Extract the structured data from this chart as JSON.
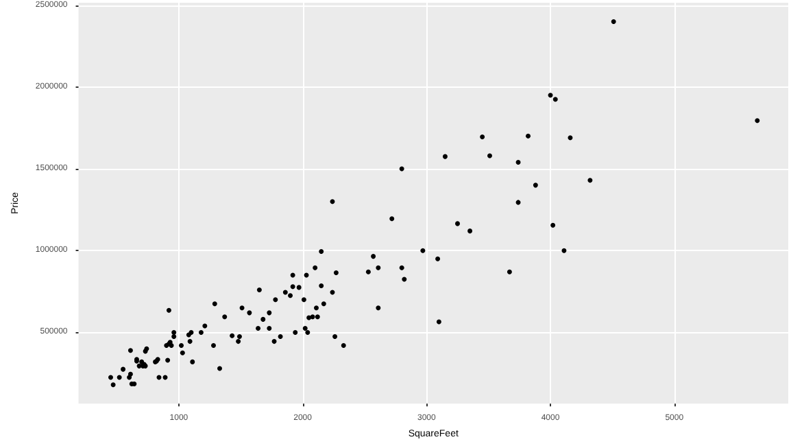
{
  "chart_data": {
    "type": "scatter",
    "xlabel": "SquareFeet",
    "ylabel": "Price",
    "xlim": [
      190,
      5920
    ],
    "ylim": [
      65000,
      2515000
    ],
    "xticks": [
      1000,
      2000,
      3000,
      4000,
      5000
    ],
    "yticks": [
      500000,
      1000000,
      1500000,
      2000000,
      2500000
    ],
    "grid": true,
    "marker": "circle",
    "series": [
      {
        "color": "#000000",
        "x": [
          2240,
          2150,
          2100,
          2270,
          1920,
          2030,
          1920,
          1970,
          2150,
          1650,
          1860,
          2240,
          1900,
          1780,
          2010,
          2170,
          1290,
          920,
          2110,
          1510,
          1570,
          1730,
          1370,
          2050,
          2080,
          2120,
          1680,
          1210,
          1640,
          1730,
          2020,
          1180,
          1100,
          960,
          1940,
          2040,
          1080,
          960,
          1430,
          1490,
          1820,
          2260,
          1090,
          930,
          920,
          1480,
          1770,
          900,
          940,
          1280,
          1020,
          2330,
          740,
          610,
          730,
          1030,
          660,
          660,
          830,
          820,
          810,
          910,
          1110,
          700,
          720,
          680,
          710,
          730,
          550,
          1330,
          610,
          450,
          520,
          600,
          840,
          890,
          640,
          620,
          470,
          3150,
          2800,
          2720,
          3250,
          3350,
          2970,
          3090,
          2570,
          2610,
          2530,
          2800,
          2820,
          2610,
          3100,
          4000,
          4040,
          3450,
          3820,
          4160,
          3510,
          3740,
          3880,
          4320,
          3740,
          4020,
          4110,
          3670,
          4510,
          5670
        ],
        "values": [
          1300000,
          995000,
          895000,
          865000,
          850000,
          850000,
          780000,
          775000,
          785000,
          760000,
          745000,
          745000,
          725000,
          700000,
          700000,
          675000,
          675000,
          635000,
          650000,
          650000,
          620000,
          620000,
          595000,
          590000,
          595000,
          595000,
          580000,
          540000,
          525000,
          525000,
          525000,
          500000,
          500000,
          500000,
          500000,
          500000,
          485000,
          475000,
          480000,
          475000,
          475000,
          475000,
          445000,
          440000,
          430000,
          445000,
          445000,
          420000,
          420000,
          420000,
          420000,
          420000,
          400000,
          390000,
          385000,
          375000,
          335000,
          325000,
          335000,
          325000,
          320000,
          330000,
          320000,
          320000,
          305000,
          295000,
          295000,
          295000,
          275000,
          280000,
          245000,
          225000,
          225000,
          225000,
          225000,
          225000,
          185000,
          185000,
          180000,
          1575000,
          1500000,
          1195000,
          1165000,
          1120000,
          1000000,
          950000,
          965000,
          895000,
          870000,
          895000,
          825000,
          650000,
          565000,
          1950000,
          1925000,
          1695000,
          1700000,
          1690000,
          1580000,
          1540000,
          1400000,
          1430000,
          1295000,
          1155000,
          1000000,
          870000,
          2400000,
          1795000
        ]
      }
    ]
  }
}
